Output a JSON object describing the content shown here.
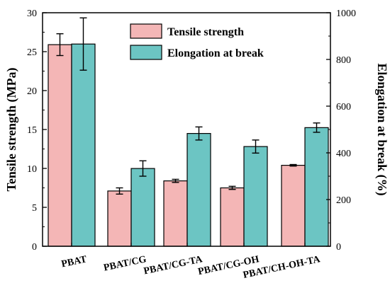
{
  "chart_data": {
    "type": "bar",
    "categories": [
      "PBAT",
      "PBAT/CG",
      "PBAT/CG-TA",
      "PBAT/CG-OH",
      "PBAT/CH-OH-TA"
    ],
    "series": [
      {
        "name": "Tensile strength",
        "axis": "left",
        "color": "#f4b6b6",
        "values": [
          25.9,
          7.1,
          8.4,
          7.5,
          10.4
        ],
        "errors": [
          1.4,
          0.4,
          0.2,
          0.2,
          0.1
        ]
      },
      {
        "name": "Elongation at break",
        "axis": "right",
        "color": "#6cc5c3",
        "values": [
          866,
          333,
          483,
          427,
          508
        ],
        "errors": [
          112,
          33,
          28,
          28,
          20
        ]
      }
    ],
    "ylabel": "Tensile strength (MPa)",
    "y2label": "Elongation at break (%)",
    "ylim": [
      0,
      30
    ],
    "y2lim": [
      0,
      1000
    ],
    "yticks": [
      0,
      5,
      10,
      15,
      20,
      25,
      30
    ],
    "y2ticks": [
      0,
      200,
      400,
      600,
      800,
      1000
    ],
    "legend_position": "top-center",
    "grid": false
  }
}
